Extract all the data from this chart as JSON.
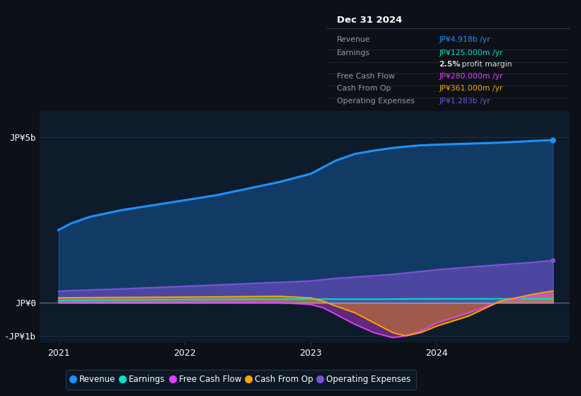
{
  "bg_color": "#0d1117",
  "plot_bg_color": "#0d1b2a",
  "grid_color": "#1e3050",
  "info_box_bg": "#0d1b2a",
  "info_box_border": "#2a3a4a",
  "years_x": [
    2021.0,
    2021.1,
    2021.25,
    2021.5,
    2021.75,
    2022.0,
    2022.25,
    2022.5,
    2022.75,
    2023.0,
    2023.1,
    2023.2,
    2023.35,
    2023.5,
    2023.65,
    2023.75,
    2023.87,
    2024.0,
    2024.25,
    2024.5,
    2024.75,
    2024.92
  ],
  "revenue": [
    2200,
    2400,
    2600,
    2800,
    2950,
    3100,
    3250,
    3450,
    3650,
    3900,
    4100,
    4300,
    4500,
    4600,
    4680,
    4720,
    4760,
    4780,
    4810,
    4840,
    4890,
    4918
  ],
  "earnings": [
    75,
    78,
    82,
    88,
    93,
    98,
    103,
    108,
    113,
    118,
    116,
    113,
    111,
    112,
    115,
    118,
    120,
    121,
    122,
    123,
    124,
    125
  ],
  "free_cash_flow": [
    20,
    22,
    25,
    28,
    25,
    20,
    15,
    10,
    5,
    -50,
    -150,
    -350,
    -650,
    -900,
    -1050,
    -1000,
    -850,
    -600,
    -300,
    50,
    200,
    280
  ],
  "cash_from_op": [
    150,
    155,
    160,
    165,
    170,
    175,
    180,
    190,
    200,
    150,
    50,
    -100,
    -300,
    -600,
    -900,
    -1000,
    -900,
    -700,
    -400,
    50,
    250,
    361
  ],
  "operating_expenses": [
    350,
    370,
    390,
    420,
    460,
    500,
    540,
    580,
    620,
    660,
    700,
    740,
    780,
    820,
    860,
    900,
    950,
    1000,
    1080,
    1150,
    1220,
    1283
  ],
  "revenue_color": "#1e90ff",
  "earnings_color": "#00e5cc",
  "free_cash_flow_color": "#e040fb",
  "cash_from_op_color": "#ffa500",
  "operating_expenses_color": "#7b52d4",
  "ylim": [
    -1200,
    5800
  ],
  "xlim": [
    2020.85,
    2025.05
  ],
  "ytick_vals": [
    -1000,
    0,
    5000
  ],
  "ytick_labels": [
    "-JP¥1b",
    "JP¥0",
    "JP¥5b"
  ],
  "xtick_positions": [
    2021,
    2022,
    2023,
    2024
  ],
  "xtick_labels": [
    "2021",
    "2022",
    "2023",
    "2024"
  ],
  "info_title": "Dec 31 2024",
  "info_rows": [
    {
      "label": "Revenue",
      "value": "JP¥4.918b /yr",
      "value_color": "#1e90ff"
    },
    {
      "label": "Earnings",
      "value": "JP¥125.000m /yr",
      "value_color": "#00e5cc"
    },
    {
      "label": "",
      "value": "2.5% profit margin",
      "value_color": "#cccccc",
      "bold_part": "2.5%"
    },
    {
      "label": "Free Cash Flow",
      "value": "JP¥280.000m /yr",
      "value_color": "#e040fb"
    },
    {
      "label": "Cash From Op",
      "value": "JP¥361.000m /yr",
      "value_color": "#ffa500"
    },
    {
      "label": "Operating Expenses",
      "value": "JP¥1.283b /yr",
      "value_color": "#7b52d4"
    }
  ],
  "legend_items": [
    {
      "label": "Revenue",
      "color": "#1e90ff"
    },
    {
      "label": "Earnings",
      "color": "#00e5cc"
    },
    {
      "label": "Free Cash Flow",
      "color": "#e040fb"
    },
    {
      "label": "Cash From Op",
      "color": "#ffa500"
    },
    {
      "label": "Operating Expenses",
      "color": "#7b52d4"
    }
  ]
}
